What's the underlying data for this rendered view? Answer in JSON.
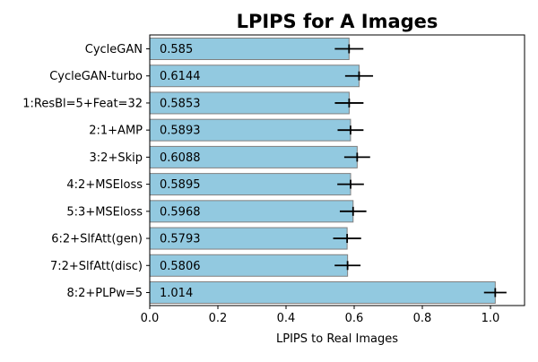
{
  "chart_data": {
    "type": "bar",
    "orientation": "horizontal",
    "title": "LPIPS for A Images",
    "xlabel": "LPIPS to Real Images",
    "ylabel": "",
    "xlim": [
      0,
      1.1
    ],
    "xticks": [
      0,
      0.2,
      0.4,
      0.6,
      0.8,
      1.0
    ],
    "xtick_labels": [
      "0.0",
      "0.2",
      "0.4",
      "0.6",
      "0.8",
      "1.0"
    ],
    "grid": false,
    "legend": "none",
    "bar_color": "#92c9e0",
    "bar_edge_color": "#808080",
    "error_bar_color": "#000000",
    "categories": [
      "CycleGAN",
      "CycleGAN-turbo",
      "1:ResBl=5+Feat=32",
      "2:1+AMP",
      "3:2+Skip",
      "4:2+MSEloss",
      "5:3+MSEloss",
      "6:2+SlfAtt(gen)",
      "7:2+SlfAtt(disc)",
      "8:2+PLPw=5"
    ],
    "values": [
      0.585,
      0.6144,
      0.5853,
      0.5893,
      0.6088,
      0.5895,
      0.5968,
      0.5793,
      0.5806,
      1.014
    ],
    "value_labels": [
      "0.585",
      "0.6144",
      "0.5853",
      "0.5893",
      "0.6088",
      "0.5895",
      "0.5968",
      "0.5793",
      "0.5806",
      "1.014"
    ],
    "errors": [
      0.042,
      0.041,
      0.042,
      0.038,
      0.038,
      0.039,
      0.039,
      0.041,
      0.038,
      0.033
    ]
  }
}
